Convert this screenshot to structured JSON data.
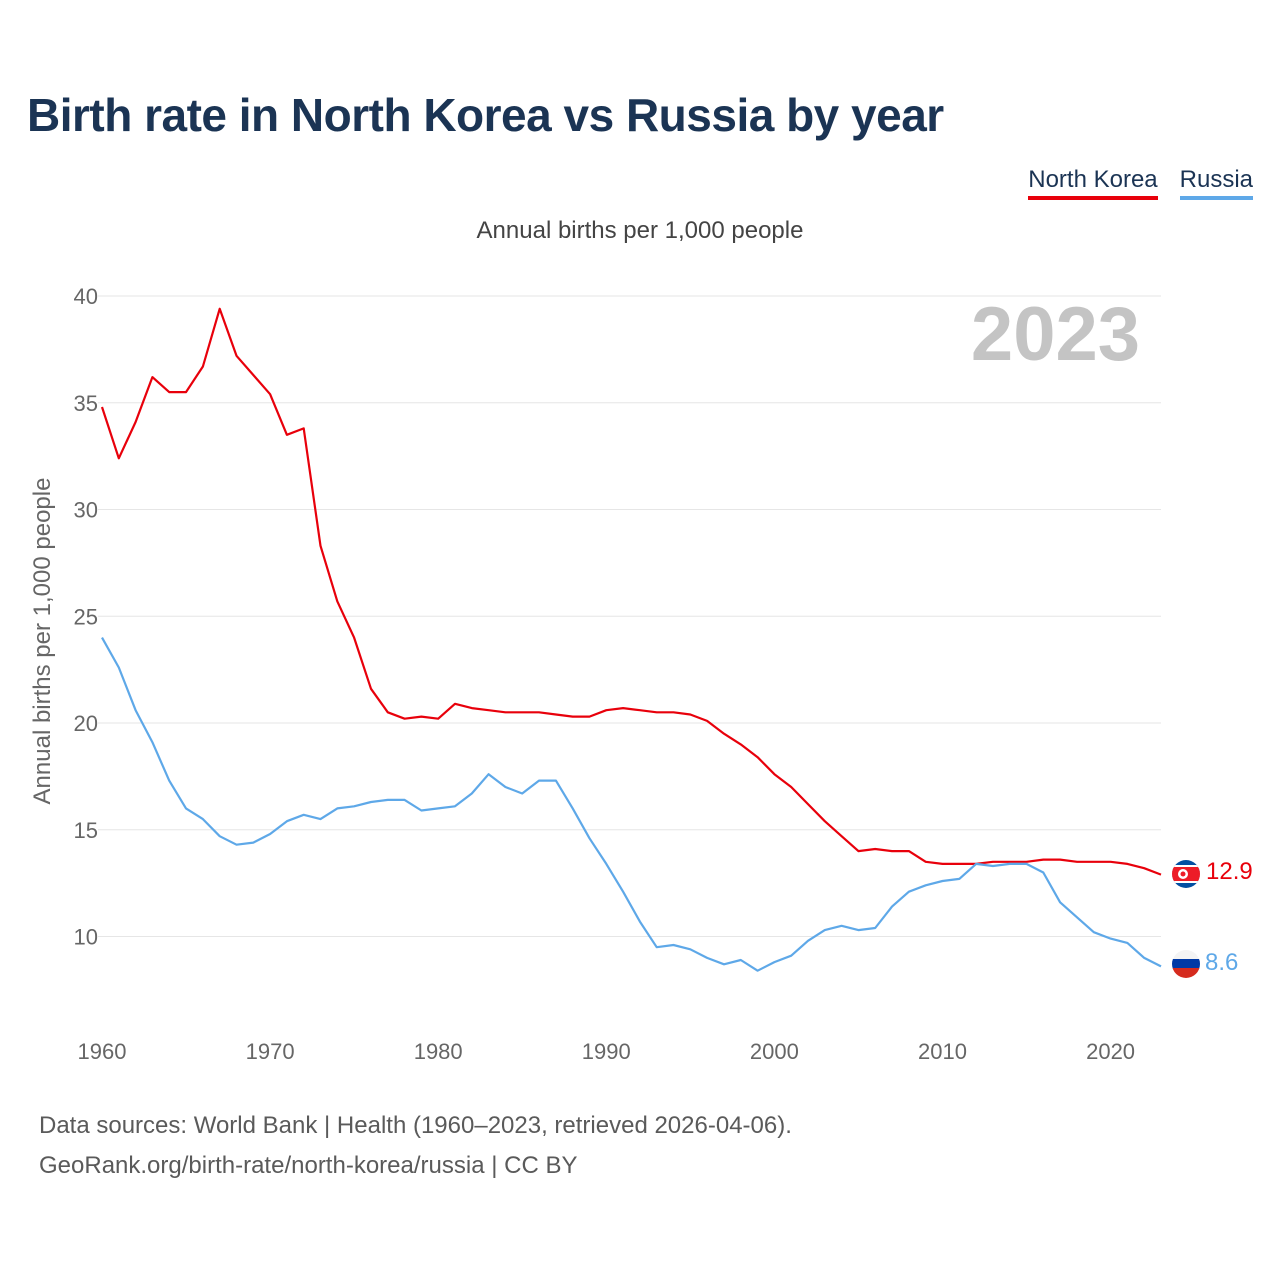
{
  "title": "Birth rate in North Korea vs Russia by year",
  "subtitle": "Annual births per 1,000 people",
  "footer": {
    "line1": "Data sources: World Bank | Health (1960–2023, retrieved 2026-04-06).",
    "line2": "GeoRank.org/birth-rate/north-korea/russia | CC BY"
  },
  "chart_data": {
    "type": "line",
    "title": "Birth rate in North Korea vs Russia by year",
    "ylabel": "Annual births per 1,000 people",
    "xlabel": "",
    "year_watermark": "2023",
    "xlim": [
      1960,
      2023
    ],
    "ylim": [
      6,
      40
    ],
    "yticks": [
      10,
      15,
      20,
      25,
      30,
      35,
      40
    ],
    "xticks": [
      1960,
      1970,
      1980,
      1990,
      2000,
      2010,
      2020
    ],
    "grid": true,
    "legend_position": "top-right",
    "x": [
      1960,
      1961,
      1962,
      1963,
      1964,
      1965,
      1966,
      1967,
      1968,
      1969,
      1970,
      1971,
      1972,
      1973,
      1974,
      1975,
      1976,
      1977,
      1978,
      1979,
      1980,
      1981,
      1982,
      1983,
      1984,
      1985,
      1986,
      1987,
      1988,
      1989,
      1990,
      1991,
      1992,
      1993,
      1994,
      1995,
      1996,
      1997,
      1998,
      1999,
      2000,
      2001,
      2002,
      2003,
      2004,
      2005,
      2006,
      2007,
      2008,
      2009,
      2010,
      2011,
      2012,
      2013,
      2014,
      2015,
      2016,
      2017,
      2018,
      2019,
      2020,
      2021,
      2022,
      2023
    ],
    "series": [
      {
        "name": "North Korea",
        "color": "#e8000b",
        "end_label": "12.9",
        "values": [
          34.8,
          32.4,
          34.1,
          36.2,
          35.5,
          35.5,
          36.7,
          39.4,
          37.2,
          36.3,
          35.4,
          33.5,
          33.8,
          28.3,
          25.7,
          24.0,
          21.6,
          20.5,
          20.2,
          20.3,
          20.2,
          20.9,
          20.7,
          20.6,
          20.5,
          20.5,
          20.5,
          20.4,
          20.3,
          20.3,
          20.6,
          20.7,
          20.6,
          20.5,
          20.5,
          20.4,
          20.1,
          19.5,
          19.0,
          18.4,
          17.6,
          17.0,
          16.2,
          15.4,
          14.7,
          14.0,
          14.1,
          14.0,
          14.0,
          13.5,
          13.4,
          13.4,
          13.4,
          13.5,
          13.5,
          13.5,
          13.6,
          13.6,
          13.5,
          13.5,
          13.5,
          13.4,
          13.2,
          12.9
        ]
      },
      {
        "name": "Russia",
        "color": "#5ea8e8",
        "end_label": "8.6",
        "values": [
          24.0,
          22.6,
          20.6,
          19.1,
          17.3,
          16.0,
          15.5,
          14.7,
          14.3,
          14.4,
          14.8,
          15.4,
          15.7,
          15.5,
          16.0,
          16.1,
          16.3,
          16.4,
          16.4,
          15.9,
          16.0,
          16.1,
          16.7,
          17.6,
          17.0,
          16.7,
          17.3,
          17.3,
          16.0,
          14.6,
          13.4,
          12.1,
          10.7,
          9.5,
          9.6,
          9.4,
          9.0,
          8.7,
          8.9,
          8.4,
          8.8,
          9.1,
          9.8,
          10.3,
          10.5,
          10.3,
          10.4,
          11.4,
          12.1,
          12.4,
          12.6,
          12.7,
          13.4,
          13.3,
          13.4,
          13.4,
          13.0,
          11.6,
          10.9,
          10.2,
          9.9,
          9.7,
          9.0,
          8.6
        ]
      }
    ]
  }
}
